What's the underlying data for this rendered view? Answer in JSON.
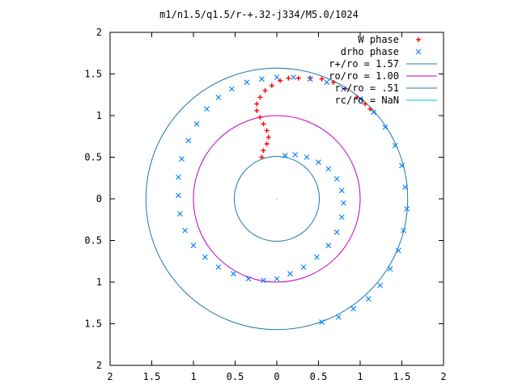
{
  "chart_data": {
    "type": "scatter",
    "title": "m1/n1.5/q1.5/r-+.32-j334/M5.0/1024",
    "xlabel": "",
    "ylabel": "",
    "xlim": [
      -2,
      2
    ],
    "ylim": [
      -2,
      2
    ],
    "x_tick_labels": [
      "2",
      "1.5",
      "1",
      "0.5",
      "0",
      "0.5",
      "1",
      "1.5",
      "2"
    ],
    "y_tick_labels": [
      "2",
      "1.5",
      "1",
      "0.5",
      "0",
      "0.5",
      "1",
      "1.5",
      "2"
    ],
    "grid": false,
    "legend_position": "top-right",
    "colors": {
      "w_phase": "#ff0000",
      "drho_phase": "#0080ff",
      "r_plus": "#1f77b4",
      "ro": "#c000c0",
      "r_minus": "#1f77b4",
      "rc": "#00c0c0",
      "axis": "#000000"
    },
    "series": [
      {
        "name": "W phase",
        "marker": "+",
        "points": [
          [
            -0.18,
            0.5
          ],
          [
            -0.16,
            0.58
          ],
          [
            -0.12,
            0.66
          ],
          [
            -0.1,
            0.74
          ],
          [
            -0.12,
            0.82
          ],
          [
            -0.16,
            0.9
          ],
          [
            -0.2,
            0.98
          ],
          [
            -0.24,
            1.06
          ],
          [
            -0.24,
            1.14
          ],
          [
            -0.2,
            1.22
          ],
          [
            -0.14,
            1.3
          ],
          [
            -0.06,
            1.36
          ],
          [
            0.04,
            1.42
          ],
          [
            0.14,
            1.45
          ],
          [
            0.26,
            1.45
          ],
          [
            0.4,
            1.45
          ],
          [
            0.54,
            1.44
          ],
          [
            0.68,
            1.4
          ],
          [
            0.82,
            1.32
          ],
          [
            0.96,
            1.22
          ],
          [
            1.06,
            1.14
          ],
          [
            1.12,
            1.08
          ]
        ]
      },
      {
        "name": "drho phase",
        "marker": "x",
        "points": [
          [
            0.1,
            0.52
          ],
          [
            0.22,
            0.53
          ],
          [
            0.36,
            0.5
          ],
          [
            0.5,
            0.44
          ],
          [
            0.62,
            0.36
          ],
          [
            0.72,
            0.24
          ],
          [
            0.78,
            0.1
          ],
          [
            0.8,
            -0.05
          ],
          [
            0.78,
            -0.22
          ],
          [
            0.72,
            -0.4
          ],
          [
            0.62,
            -0.56
          ],
          [
            0.48,
            -0.7
          ],
          [
            0.32,
            -0.82
          ],
          [
            0.16,
            -0.9
          ],
          [
            0.0,
            -0.96
          ],
          [
            -0.16,
            -0.98
          ],
          [
            -0.34,
            -0.96
          ],
          [
            -0.52,
            -0.9
          ],
          [
            -0.7,
            -0.82
          ],
          [
            -0.86,
            -0.7
          ],
          [
            -1.0,
            -0.56
          ],
          [
            -1.1,
            -0.38
          ],
          [
            -1.16,
            -0.18
          ],
          [
            -1.18,
            0.04
          ],
          [
            -1.18,
            0.26
          ],
          [
            -1.14,
            0.48
          ],
          [
            -1.06,
            0.7
          ],
          [
            -0.96,
            0.9
          ],
          [
            -0.84,
            1.08
          ],
          [
            -0.7,
            1.22
          ],
          [
            -0.54,
            1.32
          ],
          [
            -0.36,
            1.4
          ],
          [
            -0.18,
            1.44
          ],
          [
            0.0,
            1.46
          ],
          [
            0.2,
            1.46
          ],
          [
            0.4,
            1.44
          ],
          [
            0.6,
            1.4
          ],
          [
            0.8,
            1.32
          ],
          [
            1.0,
            1.2
          ],
          [
            1.16,
            1.04
          ],
          [
            1.3,
            0.86
          ],
          [
            1.42,
            0.64
          ],
          [
            1.5,
            0.4
          ],
          [
            1.54,
            0.14
          ],
          [
            1.56,
            -0.12
          ],
          [
            1.52,
            -0.38
          ],
          [
            1.46,
            -0.62
          ],
          [
            1.36,
            -0.84
          ],
          [
            1.24,
            -1.04
          ],
          [
            1.1,
            -1.2
          ],
          [
            0.92,
            -1.32
          ],
          [
            0.74,
            -1.42
          ],
          [
            0.54,
            -1.48
          ]
        ]
      },
      {
        "name": "r+/ro = 1.57",
        "type": "circle",
        "radius": 1.57
      },
      {
        "name": "ro/ro = 1.00",
        "type": "circle",
        "radius": 1.0
      },
      {
        "name": "r-/ro = .51",
        "type": "circle",
        "radius": 0.51
      },
      {
        "name": "rc/ro = NaN",
        "type": "circle",
        "radius": null
      }
    ]
  }
}
